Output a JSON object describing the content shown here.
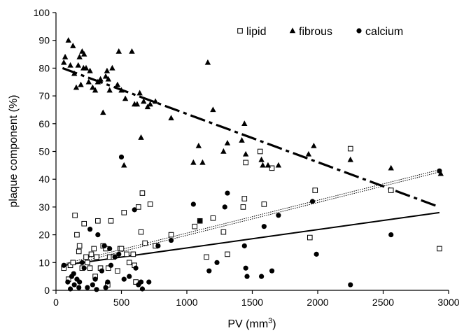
{
  "chart_data": {
    "type": "scatter",
    "xlabel": "PV (mm",
    "xlabel_sup": "3",
    "xlabel_close": ")",
    "ylabel": "plaque component (%)",
    "xlim": [
      0,
      3000
    ],
    "ylim": [
      0,
      100
    ],
    "xticks": [
      0,
      500,
      1000,
      1500,
      2000,
      2500,
      3000
    ],
    "yticks": [
      0,
      10,
      20,
      30,
      40,
      50,
      60,
      70,
      80,
      90,
      100
    ],
    "grid": false,
    "legend_placement": "top-right",
    "series": [
      {
        "name": "lipid",
        "marker": "open-square",
        "trendline": {
          "style": "dotted-double",
          "from": [
            50,
            9
          ],
          "to": [
            2930,
            43
          ]
        },
        "points": [
          [
            60,
            8
          ],
          [
            95,
            4
          ],
          [
            110,
            9
          ],
          [
            130,
            10
          ],
          [
            145,
            27
          ],
          [
            160,
            20
          ],
          [
            175,
            14
          ],
          [
            180,
            16
          ],
          [
            200,
            8
          ],
          [
            215,
            24
          ],
          [
            230,
            12
          ],
          [
            240,
            10
          ],
          [
            260,
            8
          ],
          [
            270,
            13
          ],
          [
            290,
            15
          ],
          [
            300,
            5
          ],
          [
            310,
            12
          ],
          [
            320,
            25
          ],
          [
            340,
            8
          ],
          [
            360,
            16
          ],
          [
            380,
            15
          ],
          [
            395,
            2
          ],
          [
            400,
            8
          ],
          [
            410,
            12
          ],
          [
            420,
            25
          ],
          [
            440,
            12
          ],
          [
            470,
            7
          ],
          [
            490,
            15
          ],
          [
            500,
            15
          ],
          [
            520,
            28
          ],
          [
            540,
            13
          ],
          [
            560,
            10
          ],
          [
            590,
            13
          ],
          [
            600,
            9
          ],
          [
            610,
            3
          ],
          [
            630,
            30
          ],
          [
            650,
            21
          ],
          [
            660,
            35
          ],
          [
            680,
            17
          ],
          [
            720,
            31
          ],
          [
            760,
            16
          ],
          [
            880,
            20
          ],
          [
            1060,
            23
          ],
          [
            1100,
            25
          ],
          [
            1150,
            12
          ],
          [
            1200,
            26
          ],
          [
            1280,
            21
          ],
          [
            1310,
            13
          ],
          [
            1430,
            30
          ],
          [
            1440,
            33
          ],
          [
            1450,
            46
          ],
          [
            1560,
            50
          ],
          [
            1590,
            31
          ],
          [
            1650,
            44
          ],
          [
            1940,
            19
          ],
          [
            1980,
            36
          ],
          [
            2250,
            51
          ],
          [
            2560,
            36
          ],
          [
            2930,
            15
          ]
        ]
      },
      {
        "name": "fibrous",
        "marker": "filled-triangle",
        "trendline": {
          "style": "dash-dot",
          "from": [
            50,
            80
          ],
          "to": [
            2930,
            30
          ]
        },
        "points": [
          [
            60,
            82
          ],
          [
            70,
            84
          ],
          [
            95,
            90
          ],
          [
            110,
            81
          ],
          [
            130,
            88
          ],
          [
            140,
            78
          ],
          [
            155,
            73
          ],
          [
            170,
            81
          ],
          [
            180,
            84
          ],
          [
            190,
            74
          ],
          [
            200,
            86
          ],
          [
            210,
            80
          ],
          [
            215,
            85
          ],
          [
            230,
            80
          ],
          [
            250,
            75
          ],
          [
            260,
            79
          ],
          [
            280,
            73
          ],
          [
            300,
            72
          ],
          [
            320,
            75
          ],
          [
            340,
            76
          ],
          [
            360,
            64
          ],
          [
            380,
            77
          ],
          [
            390,
            79
          ],
          [
            400,
            76
          ],
          [
            410,
            72
          ],
          [
            430,
            80
          ],
          [
            470,
            74
          ],
          [
            480,
            86
          ],
          [
            500,
            72
          ],
          [
            520,
            45
          ],
          [
            530,
            69
          ],
          [
            580,
            86
          ],
          [
            600,
            67
          ],
          [
            620,
            67
          ],
          [
            640,
            71
          ],
          [
            650,
            55
          ],
          [
            670,
            68
          ],
          [
            700,
            66
          ],
          [
            720,
            67
          ],
          [
            760,
            68
          ],
          [
            880,
            62
          ],
          [
            1050,
            46
          ],
          [
            1090,
            52
          ],
          [
            1120,
            46
          ],
          [
            1160,
            82
          ],
          [
            1200,
            65
          ],
          [
            1280,
            50
          ],
          [
            1310,
            53
          ],
          [
            1420,
            54
          ],
          [
            1440,
            60
          ],
          [
            1450,
            49
          ],
          [
            1570,
            47
          ],
          [
            1580,
            45
          ],
          [
            1620,
            45
          ],
          [
            1700,
            45
          ],
          [
            1930,
            49
          ],
          [
            1970,
            52
          ],
          [
            2250,
            47
          ],
          [
            2560,
            44
          ],
          [
            2940,
            42
          ]
        ]
      },
      {
        "name": "calcium",
        "marker": "filled-circle",
        "trendline": {
          "style": "solid",
          "from": [
            50,
            9
          ],
          "to": [
            2930,
            28
          ]
        },
        "points": [
          [
            60,
            9
          ],
          [
            90,
            3
          ],
          [
            110,
            0.5
          ],
          [
            120,
            5
          ],
          [
            135,
            6
          ],
          [
            140,
            2
          ],
          [
            160,
            4
          ],
          [
            175,
            1
          ],
          [
            180,
            3
          ],
          [
            200,
            10
          ],
          [
            215,
            8
          ],
          [
            240,
            1
          ],
          [
            260,
            22
          ],
          [
            280,
            2
          ],
          [
            300,
            4
          ],
          [
            310,
            0.3
          ],
          [
            320,
            20
          ],
          [
            350,
            7
          ],
          [
            370,
            16
          ],
          [
            380,
            1
          ],
          [
            395,
            3
          ],
          [
            410,
            15
          ],
          [
            420,
            9
          ],
          [
            450,
            12
          ],
          [
            480,
            13
          ],
          [
            500,
            48
          ],
          [
            520,
            4
          ],
          [
            560,
            5
          ],
          [
            600,
            29
          ],
          [
            610,
            8
          ],
          [
            630,
            2
          ],
          [
            650,
            3
          ],
          [
            660,
            0.5
          ],
          [
            710,
            3
          ],
          [
            780,
            16
          ],
          [
            880,
            18
          ],
          [
            1050,
            31
          ],
          [
            1100,
            25
          ],
          [
            1170,
            7
          ],
          [
            1230,
            10
          ],
          [
            1290,
            30
          ],
          [
            1310,
            35
          ],
          [
            1440,
            16
          ],
          [
            1450,
            8
          ],
          [
            1460,
            5
          ],
          [
            1570,
            5
          ],
          [
            1590,
            23
          ],
          [
            1650,
            7
          ],
          [
            1700,
            27
          ],
          [
            1960,
            32
          ],
          [
            1990,
            13
          ],
          [
            2250,
            2
          ],
          [
            2560,
            20
          ],
          [
            2930,
            43
          ]
        ]
      }
    ]
  }
}
